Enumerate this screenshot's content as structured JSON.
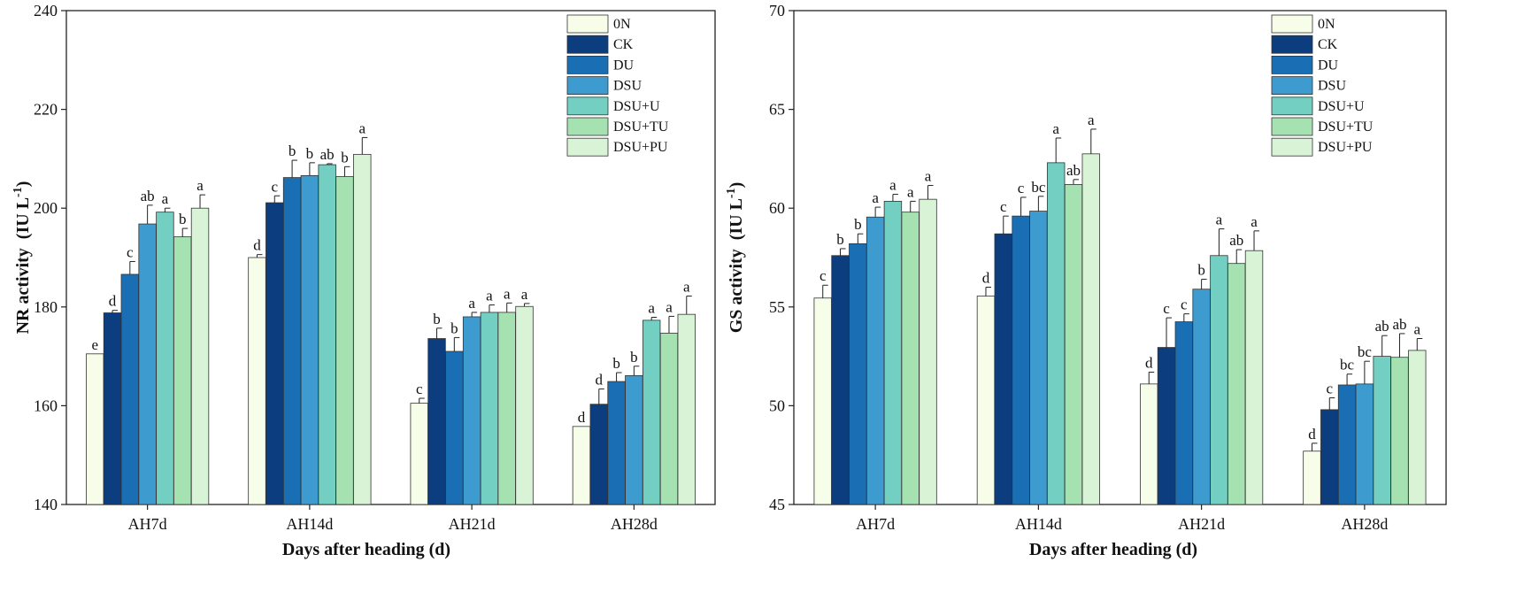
{
  "series_colors": [
    "#f6fde9",
    "#0c3d7e",
    "#1a6fb4",
    "#3d9bd0",
    "#72cfc2",
    "#a6e1b2",
    "#d9f3d6"
  ],
  "chart_data": [
    {
      "type": "bar",
      "title": "",
      "xlabel": "Days after heading (d)",
      "ylabel_main": "NR activity",
      "ylabel_unit": "(IU L",
      "ylabel_sup": "-1",
      "ylabel_close": ")",
      "ylim": [
        140,
        240
      ],
      "yticks": [
        "140",
        "160",
        "180",
        "200",
        "220",
        "240"
      ],
      "categories": [
        "AH7d",
        "AH14d",
        "AH21d",
        "AH28d"
      ],
      "legend_position": "top-right",
      "series": [
        {
          "name": "0N",
          "values": [
            170.5,
            190.0,
            160.5,
            155.8
          ],
          "errors": [
            0.0,
            0.6,
            1.0,
            0.0
          ],
          "letters": [
            "e",
            "d",
            "c",
            "d"
          ]
        },
        {
          "name": "CK",
          "values": [
            178.8,
            201.1,
            173.6,
            160.3
          ],
          "errors": [
            0.5,
            1.4,
            2.1,
            3.1
          ],
          "letters": [
            "d",
            "c",
            "b",
            "d"
          ]
        },
        {
          "name": "DU",
          "values": [
            186.6,
            206.2,
            171.0,
            164.9
          ],
          "errors": [
            2.6,
            3.5,
            2.8,
            1.8
          ],
          "letters": [
            "c",
            "b",
            "b",
            "b"
          ]
        },
        {
          "name": "DSU",
          "values": [
            196.8,
            206.6,
            178.0,
            166.1
          ],
          "errors": [
            3.8,
            2.6,
            0.9,
            1.9
          ],
          "letters": [
            "ab",
            "b",
            "a",
            "b"
          ]
        },
        {
          "name": "DSU+U",
          "values": [
            199.2,
            208.8,
            178.9,
            177.3
          ],
          "errors": [
            0.8,
            0.2,
            1.5,
            0.6
          ],
          "letters": [
            "a",
            "ab",
            "a",
            "a"
          ]
        },
        {
          "name": "DSU+TU",
          "values": [
            194.2,
            206.4,
            178.9,
            174.7
          ],
          "errors": [
            1.7,
            2.0,
            1.9,
            3.4
          ],
          "letters": [
            "b",
            "b",
            "a",
            "a"
          ]
        },
        {
          "name": "DSU+PU",
          "values": [
            200.0,
            210.9,
            180.1,
            178.5
          ],
          "errors": [
            2.7,
            3.4,
            0.6,
            3.7
          ],
          "letters": [
            "a",
            "a",
            "a",
            "a"
          ]
        }
      ]
    },
    {
      "type": "bar",
      "title": "",
      "xlabel": "Days after heading (d)",
      "ylabel_main": "GS activity",
      "ylabel_unit": "(IU L",
      "ylabel_sup": "-1",
      "ylabel_close": ")",
      "ylim": [
        45,
        70
      ],
      "yticks": [
        "45",
        "50",
        "55",
        "60",
        "65",
        "70"
      ],
      "categories": [
        "AH7d",
        "AH14d",
        "AH21d",
        "AH28d"
      ],
      "legend_position": "top-right",
      "series": [
        {
          "name": "0N",
          "values": [
            55.45,
            55.55,
            51.1,
            47.7
          ],
          "errors": [
            0.65,
            0.45,
            0.6,
            0.4
          ],
          "letters": [
            "c",
            "d",
            "d",
            "d"
          ]
        },
        {
          "name": "CK",
          "values": [
            57.6,
            58.7,
            52.95,
            49.8
          ],
          "errors": [
            0.35,
            0.9,
            1.5,
            0.6
          ],
          "letters": [
            "b",
            "c",
            "c",
            "c"
          ]
        },
        {
          "name": "DU",
          "values": [
            58.2,
            59.6,
            54.25,
            51.05
          ],
          "errors": [
            0.5,
            0.95,
            0.4,
            0.55
          ],
          "letters": [
            "b",
            "c",
            "c",
            "bc"
          ]
        },
        {
          "name": "DSU",
          "values": [
            59.55,
            59.85,
            55.9,
            51.1
          ],
          "errors": [
            0.5,
            0.75,
            0.5,
            1.15
          ],
          "letters": [
            "a",
            "bc",
            "b",
            "bc"
          ]
        },
        {
          "name": "DSU+U",
          "values": [
            60.35,
            62.3,
            57.6,
            52.5
          ],
          "errors": [
            0.35,
            1.25,
            1.35,
            1.05
          ],
          "letters": [
            "a",
            "a",
            "a",
            "ab"
          ]
        },
        {
          "name": "DSU+TU",
          "values": [
            59.8,
            61.2,
            57.2,
            52.45
          ],
          "errors": [
            0.55,
            0.25,
            0.7,
            1.2
          ],
          "letters": [
            "a",
            "ab",
            "ab",
            "ab"
          ]
        },
        {
          "name": "DSU+PU",
          "values": [
            60.45,
            62.75,
            57.85,
            52.8
          ],
          "errors": [
            0.7,
            1.25,
            1.0,
            0.6
          ],
          "letters": [
            "a",
            "a",
            "a",
            "a"
          ]
        }
      ]
    }
  ]
}
